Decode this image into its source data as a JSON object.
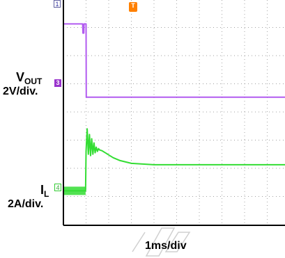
{
  "colors": {
    "ch3": "#b25bf0",
    "ch4": "#33dd33",
    "grid": "#808080",
    "trigger": "#ff8000",
    "ch3_marker": "#9933cc"
  },
  "markers": {
    "ch1": "1",
    "ch3": "3",
    "ch4": "4",
    "trigger": "T"
  },
  "labels": {
    "vout_main": "V",
    "vout_sub": "OUT",
    "vout_scale": "2V/div.",
    "il_main": "I",
    "il_sub": "L",
    "il_scale": "2A/div."
  },
  "chart_data": {
    "type": "line",
    "xlabel": "1ms/div",
    "ylabel": "",
    "x_divisions": 10,
    "y_divisions": 8,
    "xlim": [
      0,
      10
    ],
    "ylim": [
      -8,
      8
    ],
    "grid": true,
    "series": [
      {
        "name": "VOUT",
        "units": "V",
        "x": [
          0,
          0.85,
          0.86,
          0.9,
          0.91,
          1.0,
          1.01,
          10
        ],
        "y": [
          6.25,
          6.25,
          5.6,
          5.6,
          6.25,
          6.25,
          1.05,
          1.05
        ]
      },
      {
        "name": "IL",
        "units": "A",
        "x": [
          0,
          0.98,
          1.0,
          1.05,
          1.1,
          1.15,
          1.2,
          1.25,
          1.3,
          1.35,
          1.4,
          1.45,
          1.5,
          1.55,
          1.6,
          1.7,
          1.8,
          1.9,
          2.0,
          2.2,
          2.5,
          3.0,
          3.5,
          4.0,
          5.0,
          10
        ],
        "y": [
          -5.6,
          -5.6,
          -2.8,
          -1.2,
          -3.0,
          -1.6,
          -3.1,
          -1.9,
          -3.0,
          -2.2,
          -2.9,
          -2.5,
          -2.8,
          -2.6,
          -2.7,
          -2.75,
          -2.85,
          -2.95,
          -3.05,
          -3.25,
          -3.45,
          -3.65,
          -3.7,
          -3.75,
          -3.75,
          -3.75
        ]
      }
    ]
  }
}
